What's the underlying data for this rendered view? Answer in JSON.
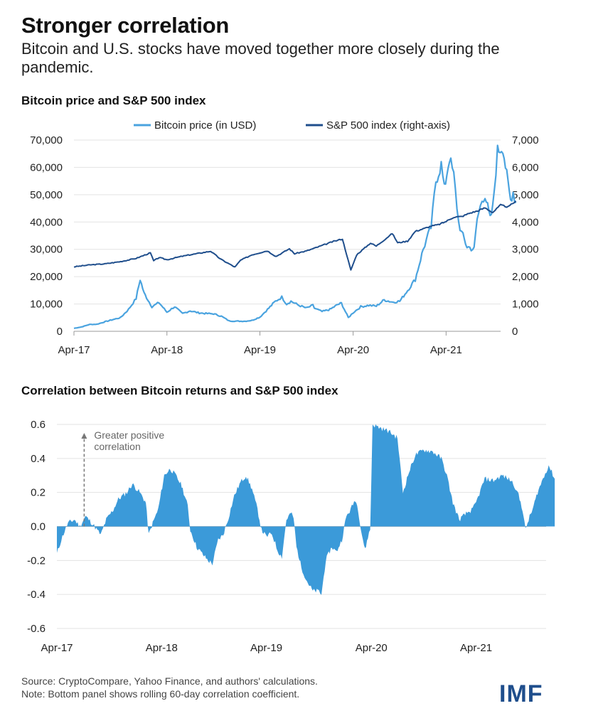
{
  "header": {
    "title": "Stronger correlation",
    "subtitle": "Bitcoin and U.S. stocks have moved together more closely during the pandemic."
  },
  "colors": {
    "bitcoin": "#4aa3df",
    "sp500": "#1f4e8c",
    "area": "#3b9ad9",
    "grid": "#e3e3e3",
    "logo": "#1f4e8c"
  },
  "chart_data": [
    {
      "type": "line",
      "title": "Bitcoin price and S&P 500 index",
      "legend": {
        "placement": "top",
        "entries": [
          "Bitcoin price (in USD)",
          "S&P 500 index (right-axis)"
        ]
      },
      "grid": true,
      "x_ticks": [
        "Apr-17",
        "Apr-18",
        "Apr-19",
        "Apr-20",
        "Apr-21"
      ],
      "xlim": [
        "2017-04",
        "2021-11"
      ],
      "ylim_left": [
        0,
        70000
      ],
      "ylim_right": [
        0,
        7000
      ],
      "y_ticks_left": [
        "0",
        "10,000",
        "20,000",
        "30,000",
        "40,000",
        "50,000",
        "60,000",
        "70,000"
      ],
      "y_ticks_right": [
        "0",
        "1,000",
        "2,000",
        "3,000",
        "4,000",
        "5,000",
        "6,000",
        "7,000"
      ],
      "series": [
        {
          "name": "Bitcoin price (in USD)",
          "axis": "left",
          "points": [
            [
              "2017-04-01",
              1100
            ],
            [
              "2017-05-01",
              1600
            ],
            [
              "2017-06-01",
              2500
            ],
            [
              "2017-07-01",
              2600
            ],
            [
              "2017-08-01",
              3500
            ],
            [
              "2017-09-01",
              4300
            ],
            [
              "2017-10-01",
              5000
            ],
            [
              "2017-11-01",
              8000
            ],
            [
              "2017-12-01",
              12000
            ],
            [
              "2017-12-17",
              19000
            ],
            [
              "2018-01-01",
              14000
            ],
            [
              "2018-02-01",
              9000
            ],
            [
              "2018-03-01",
              10500
            ],
            [
              "2018-04-01",
              7000
            ],
            [
              "2018-05-01",
              9000
            ],
            [
              "2018-06-01",
              6500
            ],
            [
              "2018-07-01",
              7500
            ],
            [
              "2018-08-01",
              6800
            ],
            [
              "2018-09-01",
              6500
            ],
            [
              "2018-10-01",
              6400
            ],
            [
              "2018-11-01",
              5500
            ],
            [
              "2018-12-01",
              3800
            ],
            [
              "2019-01-01",
              3700
            ],
            [
              "2019-02-01",
              3700
            ],
            [
              "2019-03-01",
              4000
            ],
            [
              "2019-04-01",
              5200
            ],
            [
              "2019-05-01",
              8000
            ],
            [
              "2019-06-01",
              11000
            ],
            [
              "2019-06-26",
              12500
            ],
            [
              "2019-07-15",
              10000
            ],
            [
              "2019-08-01",
              11000
            ],
            [
              "2019-09-01",
              9500
            ],
            [
              "2019-10-01",
              8500
            ],
            [
              "2019-10-26",
              9500
            ],
            [
              "2019-11-01",
              8500
            ],
            [
              "2019-12-01",
              7200
            ],
            [
              "2020-01-01",
              8000
            ],
            [
              "2020-02-01",
              9800
            ],
            [
              "2020-02-15",
              10300
            ],
            [
              "2020-03-13",
              5000
            ],
            [
              "2020-04-01",
              6800
            ],
            [
              "2020-05-01",
              9000
            ],
            [
              "2020-06-01",
              9500
            ],
            [
              "2020-07-01",
              9200
            ],
            [
              "2020-08-01",
              11500
            ],
            [
              "2020-09-01",
              10700
            ],
            [
              "2020-10-01",
              11000
            ],
            [
              "2020-11-01",
              15000
            ],
            [
              "2020-12-01",
              19000
            ],
            [
              "2021-01-01",
              30000
            ],
            [
              "2021-01-20",
              35000
            ],
            [
              "2021-02-01",
              38000
            ],
            [
              "2021-02-20",
              55000
            ],
            [
              "2021-03-13",
              61000
            ],
            [
              "2021-03-25",
              52000
            ],
            [
              "2021-04-14",
              63500
            ],
            [
              "2021-05-01",
              57000
            ],
            [
              "2021-05-20",
              40000
            ],
            [
              "2021-06-01",
              36000
            ],
            [
              "2021-06-22",
              31000
            ],
            [
              "2021-07-20",
              30000
            ],
            [
              "2021-08-01",
              41000
            ],
            [
              "2021-08-20",
              48000
            ],
            [
              "2021-09-01",
              50000
            ],
            [
              "2021-09-21",
              41000
            ],
            [
              "2021-10-01",
              45000
            ],
            [
              "2021-10-20",
              66000
            ],
            [
              "2021-11-10",
              67500
            ],
            [
              "2021-11-25",
              57000
            ],
            [
              "2021-12-10",
              48000
            ],
            [
              "2021-12-20",
              51000
            ],
            [
              "2021-12-31",
              47000
            ]
          ]
        },
        {
          "name": "S&P 500 index (right-axis)",
          "axis": "right",
          "points": [
            [
              "2017-04-01",
              2360
            ],
            [
              "2017-06-01",
              2430
            ],
            [
              "2017-08-01",
              2470
            ],
            [
              "2017-10-01",
              2550
            ],
            [
              "2017-12-01",
              2670
            ],
            [
              "2018-01-26",
              2870
            ],
            [
              "2018-02-08",
              2580
            ],
            [
              "2018-03-01",
              2700
            ],
            [
              "2018-04-01",
              2620
            ],
            [
              "2018-06-01",
              2750
            ],
            [
              "2018-08-01",
              2850
            ],
            [
              "2018-09-20",
              2930
            ],
            [
              "2018-10-29",
              2640
            ],
            [
              "2018-12-24",
              2350
            ],
            [
              "2019-01-15",
              2600
            ],
            [
              "2019-03-01",
              2800
            ],
            [
              "2019-04-30",
              2945
            ],
            [
              "2019-06-03",
              2740
            ],
            [
              "2019-07-26",
              3020
            ],
            [
              "2019-08-15",
              2840
            ],
            [
              "2019-10-01",
              2940
            ],
            [
              "2019-12-01",
              3140
            ],
            [
              "2020-01-15",
              3290
            ],
            [
              "2020-02-19",
              3380
            ],
            [
              "2020-03-23",
              2240
            ],
            [
              "2020-04-15",
              2800
            ],
            [
              "2020-06-08",
              3230
            ],
            [
              "2020-07-01",
              3120
            ],
            [
              "2020-09-02",
              3580
            ],
            [
              "2020-09-23",
              3240
            ],
            [
              "2020-11-01",
              3300
            ],
            [
              "2020-12-01",
              3660
            ],
            [
              "2021-01-01",
              3750
            ],
            [
              "2021-02-01",
              3850
            ],
            [
              "2021-03-01",
              3900
            ],
            [
              "2021-04-01",
              4020
            ],
            [
              "2021-05-01",
              4180
            ],
            [
              "2021-06-01",
              4200
            ],
            [
              "2021-07-01",
              4320
            ],
            [
              "2021-08-01",
              4400
            ],
            [
              "2021-09-01",
              4520
            ],
            [
              "2021-10-01",
              4350
            ],
            [
              "2021-11-01",
              4620
            ],
            [
              "2021-12-01",
              4550
            ],
            [
              "2021-12-31",
              4770
            ]
          ]
        }
      ]
    },
    {
      "type": "area",
      "title": "Correlation between Bitcoin returns and S&P 500 index",
      "grid": true,
      "x_ticks": [
        "Apr-17",
        "Apr-18",
        "Apr-19",
        "Apr-20",
        "Apr-21"
      ],
      "xlim": [
        "2017-04",
        "2021-12"
      ],
      "ylim": [
        -0.6,
        0.6
      ],
      "y_ticks": [
        "0.6",
        "0.4",
        "0.2",
        "0.0",
        "-0.2",
        "-0.4",
        "-0.6"
      ],
      "annotations": [
        {
          "text": [
            "Greater positive",
            "correlation"
          ],
          "at": "2017-07-15",
          "arrow_from": 0.0,
          "arrow_to": 0.55
        }
      ],
      "series": [
        {
          "name": "",
          "points": [
            [
              "2017-04-01",
              -0.16
            ],
            [
              "2017-04-20",
              -0.06
            ],
            [
              "2017-05-10",
              0.02
            ],
            [
              "2017-06-01",
              0.04
            ],
            [
              "2017-06-20",
              0.0
            ],
            [
              "2017-07-10",
              0.06
            ],
            [
              "2017-08-01",
              0.02
            ],
            [
              "2017-09-01",
              -0.05
            ],
            [
              "2017-09-20",
              0.04
            ],
            [
              "2017-10-15",
              0.1
            ],
            [
              "2017-11-01",
              0.16
            ],
            [
              "2017-12-01",
              0.2
            ],
            [
              "2017-12-20",
              0.25
            ],
            [
              "2018-01-15",
              0.2
            ],
            [
              "2018-02-05",
              0.14
            ],
            [
              "2018-02-15",
              -0.05
            ],
            [
              "2018-03-01",
              0.02
            ],
            [
              "2018-03-20",
              0.1
            ],
            [
              "2018-04-10",
              0.3
            ],
            [
              "2018-05-01",
              0.34
            ],
            [
              "2018-05-20",
              0.3
            ],
            [
              "2018-06-10",
              0.24
            ],
            [
              "2018-07-01",
              0.12
            ],
            [
              "2018-07-10",
              -0.02
            ],
            [
              "2018-08-01",
              -0.12
            ],
            [
              "2018-08-20",
              -0.16
            ],
            [
              "2018-09-10",
              -0.2
            ],
            [
              "2018-09-25",
              -0.22
            ],
            [
              "2018-10-15",
              -0.08
            ],
            [
              "2018-11-01",
              -0.05
            ],
            [
              "2018-11-20",
              0.05
            ],
            [
              "2018-12-10",
              0.18
            ],
            [
              "2019-01-01",
              0.26
            ],
            [
              "2019-01-20",
              0.3
            ],
            [
              "2019-02-10",
              0.22
            ],
            [
              "2019-03-01",
              0.1
            ],
            [
              "2019-03-15",
              -0.02
            ],
            [
              "2019-04-01",
              -0.06
            ],
            [
              "2019-04-20",
              -0.04
            ],
            [
              "2019-05-10",
              -0.14
            ],
            [
              "2019-05-25",
              -0.18
            ],
            [
              "2019-06-10",
              0.04
            ],
            [
              "2019-06-25",
              0.08
            ],
            [
              "2019-07-05",
              0.05
            ],
            [
              "2019-07-15",
              -0.12
            ],
            [
              "2019-08-01",
              -0.24
            ],
            [
              "2019-08-20",
              -0.32
            ],
            [
              "2019-09-10",
              -0.38
            ],
            [
              "2019-10-01",
              -0.38
            ],
            [
              "2019-10-10",
              -0.4
            ],
            [
              "2019-10-25",
              -0.2
            ],
            [
              "2019-11-15",
              -0.12
            ],
            [
              "2019-12-01",
              -0.15
            ],
            [
              "2019-12-20",
              -0.08
            ],
            [
              "2020-01-05",
              0.06
            ],
            [
              "2020-01-20",
              0.1
            ],
            [
              "2020-02-05",
              0.16
            ],
            [
              "2020-02-15",
              0.1
            ],
            [
              "2020-02-25",
              -0.02
            ],
            [
              "2020-03-10",
              -0.14
            ],
            [
              "2020-03-20",
              -0.06
            ],
            [
              "2020-03-28",
              -0.02
            ],
            [
              "2020-04-05",
              0.6
            ],
            [
              "2020-05-01",
              0.58
            ],
            [
              "2020-06-01",
              0.56
            ],
            [
              "2020-07-01",
              0.52
            ],
            [
              "2020-07-20",
              0.2
            ],
            [
              "2020-08-10",
              0.32
            ],
            [
              "2020-09-01",
              0.42
            ],
            [
              "2020-10-01",
              0.45
            ],
            [
              "2020-11-01",
              0.44
            ],
            [
              "2020-12-01",
              0.4
            ],
            [
              "2020-12-20",
              0.3
            ],
            [
              "2021-01-10",
              0.14
            ],
            [
              "2021-02-01",
              0.04
            ],
            [
              "2021-03-01",
              0.08
            ],
            [
              "2021-03-20",
              0.1
            ],
            [
              "2021-04-01",
              0.14
            ],
            [
              "2021-05-01",
              0.28
            ],
            [
              "2021-06-01",
              0.27
            ],
            [
              "2021-07-01",
              0.3
            ],
            [
              "2021-08-01",
              0.27
            ],
            [
              "2021-08-20",
              0.22
            ],
            [
              "2021-09-10",
              0.1
            ],
            [
              "2021-09-20",
              -0.02
            ],
            [
              "2021-10-01",
              0.04
            ],
            [
              "2021-10-15",
              0.1
            ],
            [
              "2021-11-01",
              0.2
            ],
            [
              "2021-11-20",
              0.28
            ],
            [
              "2021-12-10",
              0.36
            ],
            [
              "2021-12-31",
              0.28
            ]
          ]
        }
      ]
    }
  ],
  "footer": {
    "source": "Source: CryptoCompare, Yahoo Finance, and authors' calculations.",
    "note": "Note: Bottom panel shows rolling 60-day correlation coefficient.",
    "logo": "IMF"
  }
}
